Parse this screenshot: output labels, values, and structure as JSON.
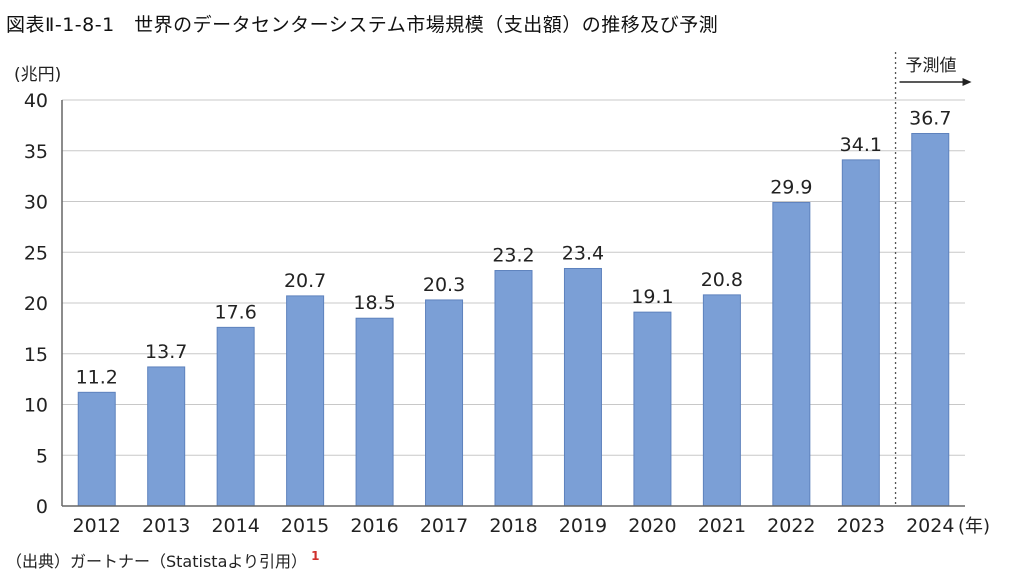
{
  "figure_title": "図表Ⅱ-1-8-1　世界のデータセンターシステム市場規模（支出額）の推移及び予測",
  "source": "（出典）ガートナー（Statistaより引用）",
  "source_note": "1",
  "colors": {
    "bar": "#7b9fd6",
    "bar_stroke": "#5e82bd",
    "grid": "#c8c8c8",
    "note": "#d0312d"
  },
  "chart_data": {
    "type": "bar",
    "title": "",
    "ylabel": "(兆円)",
    "xlabel": "(年)",
    "ylim": [
      0,
      40
    ],
    "yticks": [
      0,
      5,
      10,
      15,
      20,
      25,
      30,
      35,
      40
    ],
    "grid": true,
    "categories": [
      "2012",
      "2013",
      "2014",
      "2015",
      "2016",
      "2017",
      "2018",
      "2019",
      "2020",
      "2021",
      "2022",
      "2023",
      "2024"
    ],
    "values": [
      11.2,
      13.7,
      17.6,
      20.7,
      18.5,
      20.3,
      23.2,
      23.4,
      19.1,
      20.8,
      29.9,
      34.1,
      36.7
    ],
    "data_labels": [
      "11.2",
      "13.7",
      "17.6",
      "20.7",
      "18.5",
      "20.3",
      "23.2",
      "23.4",
      "19.1",
      "20.8",
      "29.9",
      "34.1",
      "36.7"
    ],
    "forecast_label": "予測値",
    "forecast_from": "2024"
  }
}
